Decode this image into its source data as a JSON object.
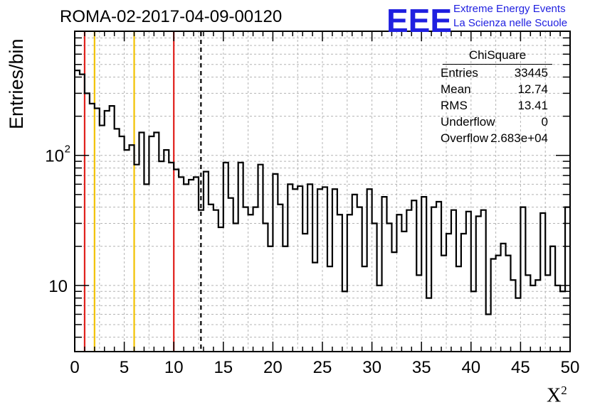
{
  "title": "ROMA-02-2017-04-09-00120",
  "logo": {
    "mark": "EEE",
    "line1": "Extreme Energy Events",
    "line2": "La Scienza nelle Scuole",
    "color": "#1f1fe0"
  },
  "stats": {
    "title": "ChiSquare",
    "rows": [
      {
        "key": "Entries",
        "value": "33445"
      },
      {
        "key": "Mean",
        "value": "12.74"
      },
      {
        "key": "RMS",
        "value": "13.41"
      },
      {
        "key": "Underflow",
        "value": "0"
      },
      {
        "key": "Overflow",
        "value": "2.683e+04"
      }
    ]
  },
  "chart_data": {
    "type": "histogram",
    "title": "ROMA-02-2017-04-09-00120",
    "xlabel": "χ²",
    "ylabel": "Entries/bin",
    "xlim": [
      0,
      50
    ],
    "ylim": [
      3.1,
      900
    ],
    "yscale": "log",
    "grid": true,
    "bin_width": 0.5,
    "x_ticks": [
      0,
      5,
      10,
      15,
      20,
      25,
      30,
      35,
      40,
      45,
      50
    ],
    "x_tick_labels": [
      "0",
      "5",
      "10",
      "15",
      "20",
      "25",
      "30",
      "35",
      "40",
      "45",
      "50"
    ],
    "y_tick_labels": [
      {
        "value": 10,
        "label": "10"
      },
      {
        "value": 100,
        "label": "10",
        "sup": "2"
      }
    ],
    "counts": [
      450,
      420,
      300,
      250,
      230,
      170,
      220,
      240,
      160,
      140,
      110,
      120,
      85,
      150,
      60,
      140,
      150,
      90,
      110,
      88,
      78,
      68,
      60,
      65,
      68,
      38,
      75,
      42,
      38,
      28,
      88,
      47,
      30,
      88,
      40,
      35,
      40,
      85,
      30,
      20,
      72,
      42,
      20,
      60,
      55,
      58,
      25,
      60,
      15,
      55,
      57,
      14,
      55,
      35,
      9,
      35,
      50,
      40,
      14,
      55,
      30,
      10,
      48,
      30,
      18,
      35,
      26,
      38,
      45,
      12,
      48,
      8,
      40,
      44,
      17,
      25,
      38,
      14,
      25,
      37,
      9,
      34,
      38,
      6,
      16,
      17,
      21,
      17,
      11,
      8,
      40,
      12,
      10,
      11,
      36,
      12,
      20,
      10,
      9,
      40
    ],
    "lines": [
      {
        "x": 1,
        "color": "#e0201c",
        "style": "solid"
      },
      {
        "x": 2,
        "color": "#f2c200",
        "style": "solid"
      },
      {
        "x": 6,
        "color": "#f2c200",
        "style": "solid"
      },
      {
        "x": 10,
        "color": "#e0201c",
        "style": "solid"
      },
      {
        "x": 12.74,
        "color": "#000000",
        "style": "dashed"
      }
    ]
  }
}
